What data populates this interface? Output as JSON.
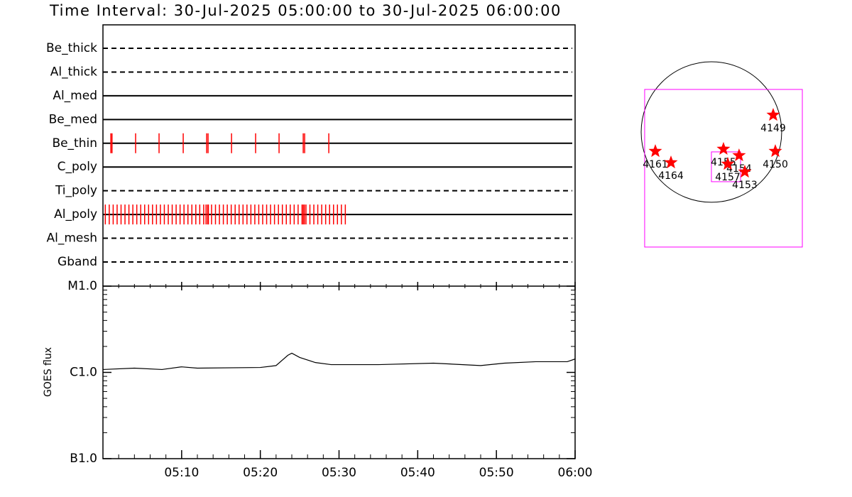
{
  "chart_data": [
    {
      "type": "timeline",
      "title": "Time Interval: 30-Jul-2025 05:00:00 to 30-Jul-2025 06:00:00",
      "categories": [
        "Be_thick",
        "Al_thick",
        "Al_med",
        "Be_med",
        "Be_thin",
        "C_poly",
        "Ti_poly",
        "Al_poly",
        "Al_mesh",
        "Gband"
      ],
      "line_styles": [
        "dashed",
        "dashed",
        "solid",
        "solid",
        "solid",
        "solid",
        "dashed",
        "solid",
        "dashed",
        "dashed"
      ],
      "events": [
        [],
        [],
        [],
        [],
        [
          1.0,
          1.15,
          4.15,
          7.13,
          10.2,
          13.18,
          13.36,
          16.34,
          19.4,
          22.38,
          25.45,
          25.63,
          28.7
        ],
        [],
        [],
        [
          0.3,
          0.8,
          1.3,
          1.8,
          2.3,
          2.8,
          3.3,
          3.8,
          4.3,
          4.8,
          5.3,
          5.8,
          6.3,
          6.8,
          7.3,
          7.8,
          8.3,
          8.8,
          9.3,
          9.8,
          10.3,
          10.8,
          11.3,
          11.8,
          12.3,
          12.8,
          13.1,
          13.3,
          13.4,
          13.8,
          14.3,
          14.8,
          15.3,
          15.8,
          16.3,
          16.8,
          17.3,
          17.8,
          18.3,
          18.8,
          19.3,
          19.8,
          20.3,
          20.8,
          21.3,
          21.8,
          22.3,
          22.8,
          23.3,
          23.8,
          24.3,
          24.8,
          25.3,
          25.45,
          25.6,
          25.8,
          26.3,
          26.8,
          27.3,
          27.8,
          28.3,
          28.8,
          29.3,
          29.8,
          30.3,
          30.8
        ],
        [],
        []
      ],
      "event_color": "#ff0000",
      "line_color": "#000000",
      "xlim": [
        0,
        60
      ]
    },
    {
      "type": "line",
      "ylabel": "GOES flux",
      "log": true,
      "x": [
        0,
        4,
        7.5,
        10,
        12,
        20,
        22,
        23.5,
        24,
        25,
        27,
        29,
        35,
        42,
        48,
        51,
        55,
        59,
        60
      ],
      "values": [
        1.08e-06,
        1.12e-06,
        1.08e-06,
        1.16e-06,
        1.12e-06,
        1.14e-06,
        1.2e-06,
        1.58e-06,
        1.67e-06,
        1.49e-06,
        1.3e-06,
        1.23e-06,
        1.23e-06,
        1.28e-06,
        1.2e-06,
        1.28e-06,
        1.33e-06,
        1.33e-06,
        1.43e-06
      ],
      "color": "#000000",
      "xlim": [
        0,
        60
      ],
      "xticks": [
        {
          "value": 10,
          "label": "05:10"
        },
        {
          "value": 20,
          "label": "05:20"
        },
        {
          "value": 30,
          "label": "05:30"
        },
        {
          "value": 40,
          "label": "05:40"
        },
        {
          "value": 50,
          "label": "05:50"
        },
        {
          "value": 60,
          "label": "06:00"
        }
      ],
      "xminor_step": 2,
      "ylim": [
        1e-07,
        1e-05
      ],
      "yticks": [
        {
          "value": 1e-07,
          "label": "B1.0"
        },
        {
          "value": 1e-06,
          "label": "C1.0"
        },
        {
          "value": 1e-05,
          "label": "M1.0"
        }
      ]
    },
    {
      "type": "scatter",
      "marker": "star",
      "color": "#ff0000",
      "disk_radius": 945,
      "disk_color": "#000000",
      "xlim": [
        -1165,
        1700
      ],
      "ylim": [
        -1662,
        1203
      ],
      "labels": [
        "4149",
        "4161",
        "4164",
        "4155",
        "4154",
        "4157",
        "4153",
        "4150"
      ],
      "x": [
        831,
        -754,
        -544,
        162,
        372,
        220,
        449,
        860
      ],
      "values": [
        229,
        -258,
        -411,
        -229,
        -315,
        -430,
        -535,
        -258
      ],
      "boxes": [
        {
          "x": [
            -898,
            1223
          ],
          "y": [
            -1547,
            573
          ]
        },
        {
          "x": [
            0,
            392
          ],
          "y": [
            -668,
            -267
          ]
        }
      ],
      "box_color": "#ff00ff"
    }
  ]
}
